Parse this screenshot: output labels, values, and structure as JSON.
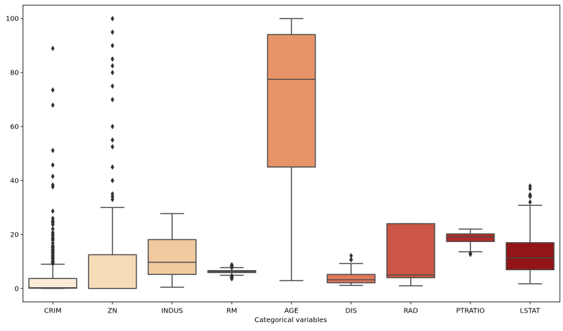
{
  "chart_data": {
    "type": "boxplot",
    "title": "",
    "xlabel": "Categorical variables",
    "ylabel": "",
    "ylim": [
      -5,
      105
    ],
    "yticks": [
      0,
      20,
      40,
      60,
      80,
      100
    ],
    "grid": false,
    "categories": [
      "CRIM",
      "ZN",
      "INDUS",
      "RM",
      "AGE",
      "DIS",
      "RAD",
      "PTRATIO",
      "LSTAT"
    ],
    "colors": [
      "#fbebd7",
      "#f5dbb8",
      "#f0ca9e",
      "#f3c08f",
      "#e8946a",
      "#e0785e",
      "#cb5645",
      "#b22b25",
      "#931517"
    ],
    "line_color": "#4a4a4a",
    "boxes": [
      {
        "name": "CRIM",
        "whislo": 0.006,
        "q1": 0.08,
        "med": 0.26,
        "q3": 3.68,
        "whishi": 8.98,
        "fliers": [
          9.18,
          9.33,
          9.39,
          9.72,
          9.82,
          9.92,
          10.06,
          10.23,
          10.83,
          11.1,
          11.16,
          11.58,
          11.82,
          12.05,
          12.25,
          12.8,
          13.08,
          13.36,
          13.52,
          13.68,
          14.05,
          14.33,
          14.44,
          15.02,
          15.18,
          15.29,
          15.58,
          15.86,
          16.81,
          17.87,
          18.08,
          18.5,
          18.81,
          19.61,
          20.08,
          20.72,
          22.05,
          23.65,
          24.39,
          24.8,
          25.05,
          25.94,
          28.66,
          37.66,
          38.35,
          41.53,
          45.75,
          51.14,
          67.92,
          73.53,
          88.98
        ]
      },
      {
        "name": "ZN",
        "whislo": 0,
        "q1": 0,
        "med": 0,
        "q3": 12.5,
        "whishi": 30,
        "fliers": [
          33,
          34,
          35,
          40,
          45,
          52.5,
          55,
          60,
          70,
          75,
          80,
          82.5,
          85,
          90,
          95,
          100
        ]
      },
      {
        "name": "INDUS",
        "whislo": 0.46,
        "q1": 5.19,
        "med": 9.69,
        "q3": 18.1,
        "whishi": 27.74,
        "fliers": []
      },
      {
        "name": "RM",
        "whislo": 4.88,
        "q1": 5.89,
        "med": 6.21,
        "q3": 6.62,
        "whishi": 7.69,
        "fliers": [
          3.56,
          3.86,
          4.14,
          4.37,
          4.52,
          4.63,
          4.65,
          7.7,
          7.8,
          7.92,
          8.04,
          8.25,
          8.38,
          8.7,
          8.78
        ]
      },
      {
        "name": "AGE",
        "whislo": 2.9,
        "q1": 45.0,
        "med": 77.5,
        "q3": 94.1,
        "whishi": 100,
        "fliers": []
      },
      {
        "name": "DIS",
        "whislo": 1.13,
        "q1": 2.1,
        "med": 3.2,
        "q3": 5.19,
        "whishi": 9.22,
        "fliers": [
          10.59,
          10.71,
          12.13
        ]
      },
      {
        "name": "RAD",
        "whislo": 1,
        "q1": 4,
        "med": 5,
        "q3": 24,
        "whishi": 24,
        "fliers": []
      },
      {
        "name": "PTRATIO",
        "whislo": 13.6,
        "q1": 17.4,
        "med": 19.05,
        "q3": 20.2,
        "whishi": 22,
        "fliers": [
          12.6,
          13.0
        ]
      },
      {
        "name": "LSTAT",
        "whislo": 1.73,
        "q1": 6.95,
        "med": 11.36,
        "q3": 16.96,
        "whishi": 30.81,
        "fliers": [
          31.99,
          34.02,
          34.37,
          34.41,
          34.77,
          36.98,
          37.97
        ]
      }
    ]
  }
}
